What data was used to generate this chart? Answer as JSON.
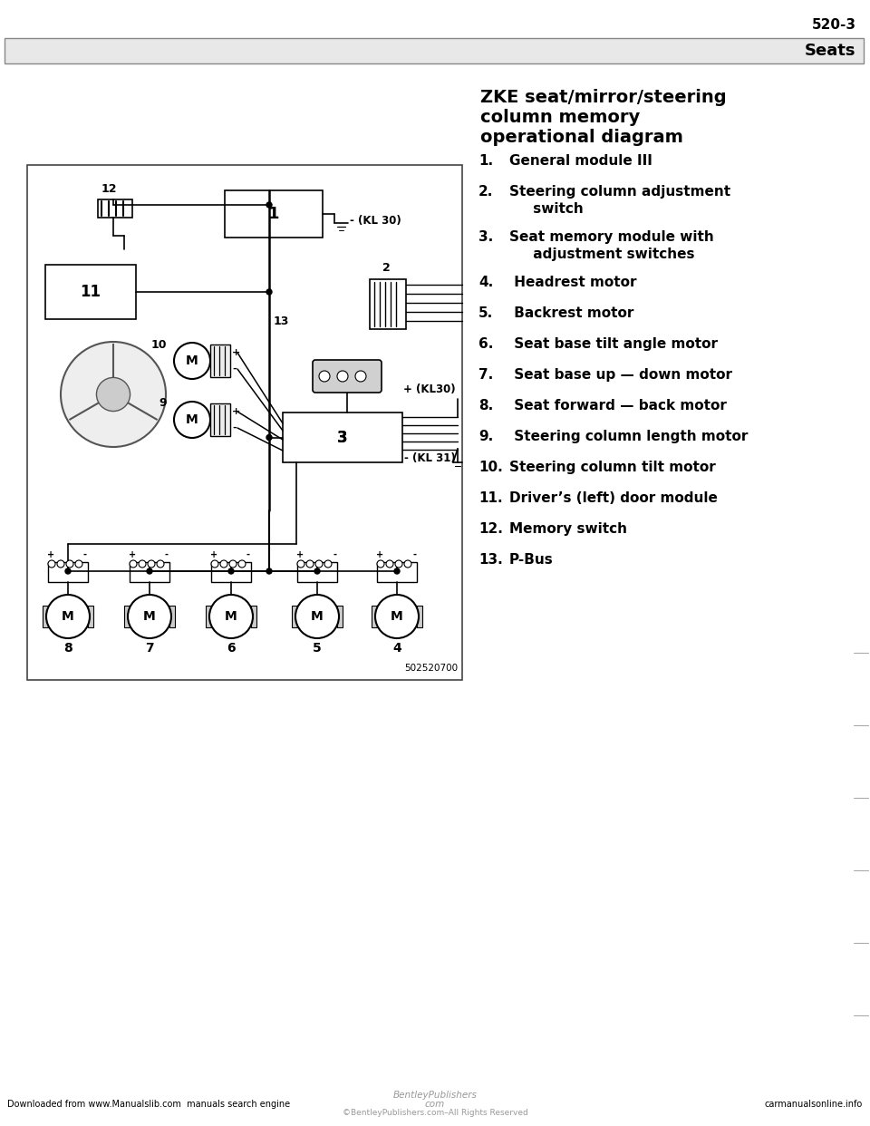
{
  "page_number": "520-3",
  "section_title": "Seats",
  "diagram_title_line1": "ZKE seat/mirror/steering",
  "diagram_title_line2": "column memory",
  "diagram_title_line3": "operational diagram",
  "items": [
    {
      "num": "1.",
      "text": "General module III"
    },
    {
      "num": "2.",
      "text": "Steering column adjustment\n     switch"
    },
    {
      "num": "3.",
      "text": "Seat memory module with\n     adjustment switches"
    },
    {
      "num": "4.",
      "text": " Headrest motor"
    },
    {
      "num": "5.",
      "text": " Backrest motor"
    },
    {
      "num": "6.",
      "text": " Seat base tilt angle motor"
    },
    {
      "num": "7.",
      "text": " Seat base up — down motor"
    },
    {
      "num": "8.",
      "text": " Seat forward — back motor"
    },
    {
      "num": "9.",
      "text": " Steering column length motor"
    },
    {
      "num": "10.",
      "text": "Steering column tilt motor"
    },
    {
      "num": "11.",
      "text": "Driver’s (left) door module"
    },
    {
      "num": "12.",
      "text": "Memory switch"
    },
    {
      "num": "13.",
      "text": "P-Bus"
    }
  ],
  "footer_left": "Downloaded from www.Manualslib.com  manuals search engine",
  "footer_center_line1": "BentleyPublishers",
  "footer_center_line2": "com",
  "footer_center_line3": "©BentleyPublishers.com–All Rights Reserved",
  "footer_right": "carmanualsonline.info",
  "bg_color": "#ffffff",
  "text_color": "#000000",
  "gray_text": "#888888"
}
